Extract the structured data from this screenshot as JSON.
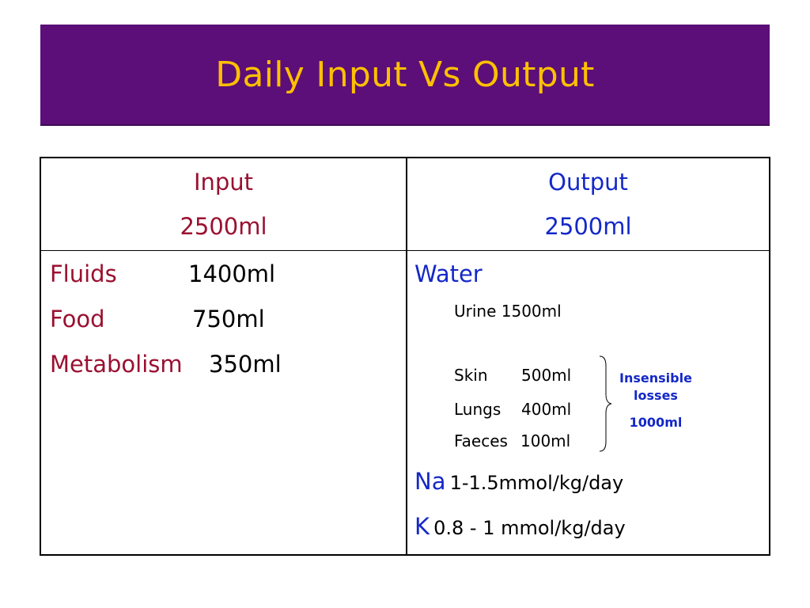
{
  "title": "Daily Input Vs Output",
  "input": {
    "heading": "Input",
    "total": "2500ml",
    "items": [
      {
        "label": "Fluids",
        "value": "1400ml"
      },
      {
        "label": "Food",
        "value": "750ml"
      },
      {
        "label": "Metabolism",
        "value": "350ml"
      }
    ]
  },
  "output": {
    "heading": "Output",
    "total": "2500ml",
    "water_label": "Water",
    "urine": "Urine 1500ml",
    "skin": {
      "label": "Skin",
      "value": "500ml"
    },
    "lungs": {
      "label": "Lungs",
      "value": "400ml"
    },
    "faeces": {
      "label": "Faeces",
      "value": "100ml"
    },
    "insensible": {
      "line1": "Insensible",
      "line2": "losses",
      "total": "1000ml"
    },
    "na": {
      "symbol": "Na",
      "value": "1-1.5mmol/kg/day"
    },
    "k": {
      "symbol": "K",
      "value": "0.8 - 1 mmol/kg/day"
    }
  }
}
